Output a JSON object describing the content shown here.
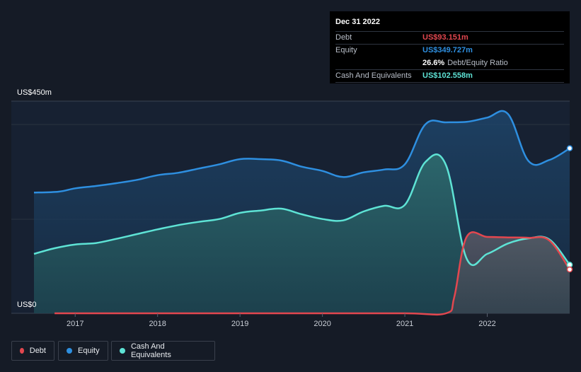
{
  "tooltip": {
    "date": "Dec 31 2022",
    "rows": [
      {
        "label": "Debt",
        "value": "US$93.151m",
        "color": "#e2474f"
      },
      {
        "label": "Equity",
        "value": "US$349.727m",
        "color": "#2e8fe0"
      },
      {
        "label": "",
        "value": "26.6%",
        "extra": "Debt/Equity Ratio",
        "color": "#ffffff"
      },
      {
        "label": "Cash And Equivalents",
        "value": "US$102.558m",
        "color": "#5ee3d5"
      }
    ]
  },
  "colors": {
    "debt": "#e2474f",
    "equity": "#2e8fe0",
    "cash": "#5ee3d5",
    "background": "#151b26"
  },
  "chart_data": {
    "type": "area",
    "title": "",
    "xlabel": "",
    "ylabel": "",
    "y_axis_labels": {
      "top": "US$450m",
      "bottom": "US$0"
    },
    "ylim": [
      0,
      450
    ],
    "xlim": [
      2016.5,
      2023.0
    ],
    "x_tick_labels": [
      "2017",
      "2018",
      "2019",
      "2020",
      "2021",
      "2022"
    ],
    "legend": [
      "Debt",
      "Equity",
      "Cash And Equivalents"
    ],
    "series": [
      {
        "name": "Equity",
        "points": [
          [
            2016.5,
            256
          ],
          [
            2016.8,
            258
          ],
          [
            2017.0,
            265
          ],
          [
            2017.25,
            270
          ],
          [
            2017.5,
            276
          ],
          [
            2017.75,
            283
          ],
          [
            2018.0,
            293
          ],
          [
            2018.25,
            298
          ],
          [
            2018.5,
            307
          ],
          [
            2018.75,
            316
          ],
          [
            2019.0,
            327
          ],
          [
            2019.25,
            327
          ],
          [
            2019.5,
            324
          ],
          [
            2019.75,
            311
          ],
          [
            2020.0,
            302
          ],
          [
            2020.25,
            289
          ],
          [
            2020.5,
            299
          ],
          [
            2020.75,
            305
          ],
          [
            2021.0,
            316
          ],
          [
            2021.25,
            401
          ],
          [
            2021.5,
            405
          ],
          [
            2021.75,
            406
          ],
          [
            2022.0,
            415
          ],
          [
            2022.25,
            423
          ],
          [
            2022.5,
            323
          ],
          [
            2022.75,
            325
          ],
          [
            2023.0,
            350
          ]
        ]
      },
      {
        "name": "Cash And Equivalents",
        "points": [
          [
            2016.5,
            126
          ],
          [
            2016.75,
            138
          ],
          [
            2017.0,
            146
          ],
          [
            2017.25,
            149
          ],
          [
            2017.5,
            158
          ],
          [
            2017.75,
            168
          ],
          [
            2018.0,
            178
          ],
          [
            2018.25,
            187
          ],
          [
            2018.5,
            194
          ],
          [
            2018.75,
            200
          ],
          [
            2019.0,
            213
          ],
          [
            2019.25,
            218
          ],
          [
            2019.5,
            222
          ],
          [
            2019.75,
            210
          ],
          [
            2020.0,
            200
          ],
          [
            2020.25,
            197
          ],
          [
            2020.5,
            216
          ],
          [
            2020.75,
            228
          ],
          [
            2021.0,
            230
          ],
          [
            2021.25,
            321
          ],
          [
            2021.5,
            314
          ],
          [
            2021.75,
            116
          ],
          [
            2022.0,
            126
          ],
          [
            2022.25,
            148
          ],
          [
            2022.5,
            159
          ],
          [
            2022.75,
            157
          ],
          [
            2023.0,
            103
          ]
        ]
      },
      {
        "name": "Debt",
        "points": [
          [
            2016.75,
            0
          ],
          [
            2017.0,
            0
          ],
          [
            2018.0,
            0
          ],
          [
            2019.0,
            0
          ],
          [
            2020.0,
            0
          ],
          [
            2021.0,
            0
          ],
          [
            2021.5,
            0
          ],
          [
            2021.6,
            35
          ],
          [
            2021.75,
            162
          ],
          [
            2022.0,
            162
          ],
          [
            2022.25,
            161
          ],
          [
            2022.5,
            160
          ],
          [
            2022.75,
            155
          ],
          [
            2023.0,
            93
          ]
        ]
      }
    ]
  },
  "legend_items": [
    {
      "label": "Debt"
    },
    {
      "label": "Equity"
    },
    {
      "label": "Cash And Equivalents"
    }
  ]
}
